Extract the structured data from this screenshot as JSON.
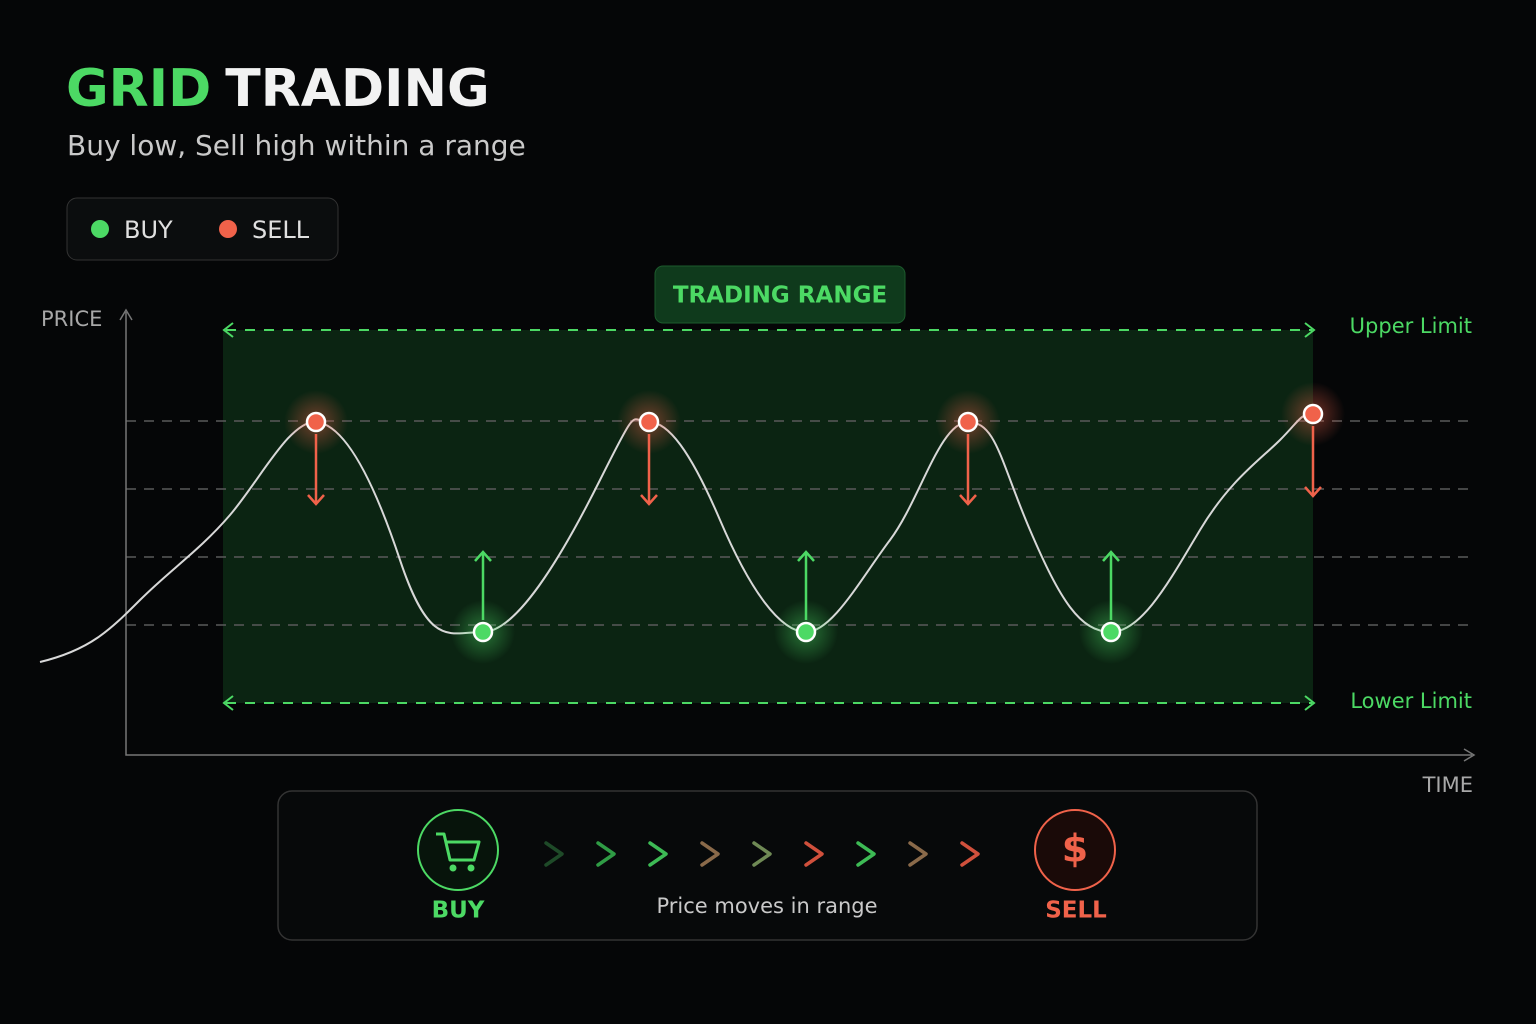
{
  "header": {
    "title_accent": "GRID",
    "title_rest": "TRADING",
    "subtitle": "Buy low, Sell high within a range"
  },
  "legend": {
    "buy": "BUY",
    "sell": "SELL"
  },
  "diagram": {
    "range_label": "TRADING RANGE",
    "y_axis": "PRICE",
    "x_axis": "TIME",
    "upper": "Upper Limit",
    "lower": "Lower Limit"
  },
  "flow": {
    "buy": "BUY",
    "caption": "Price moves in range",
    "sell": "SELL",
    "sell_icon": "$"
  }
}
